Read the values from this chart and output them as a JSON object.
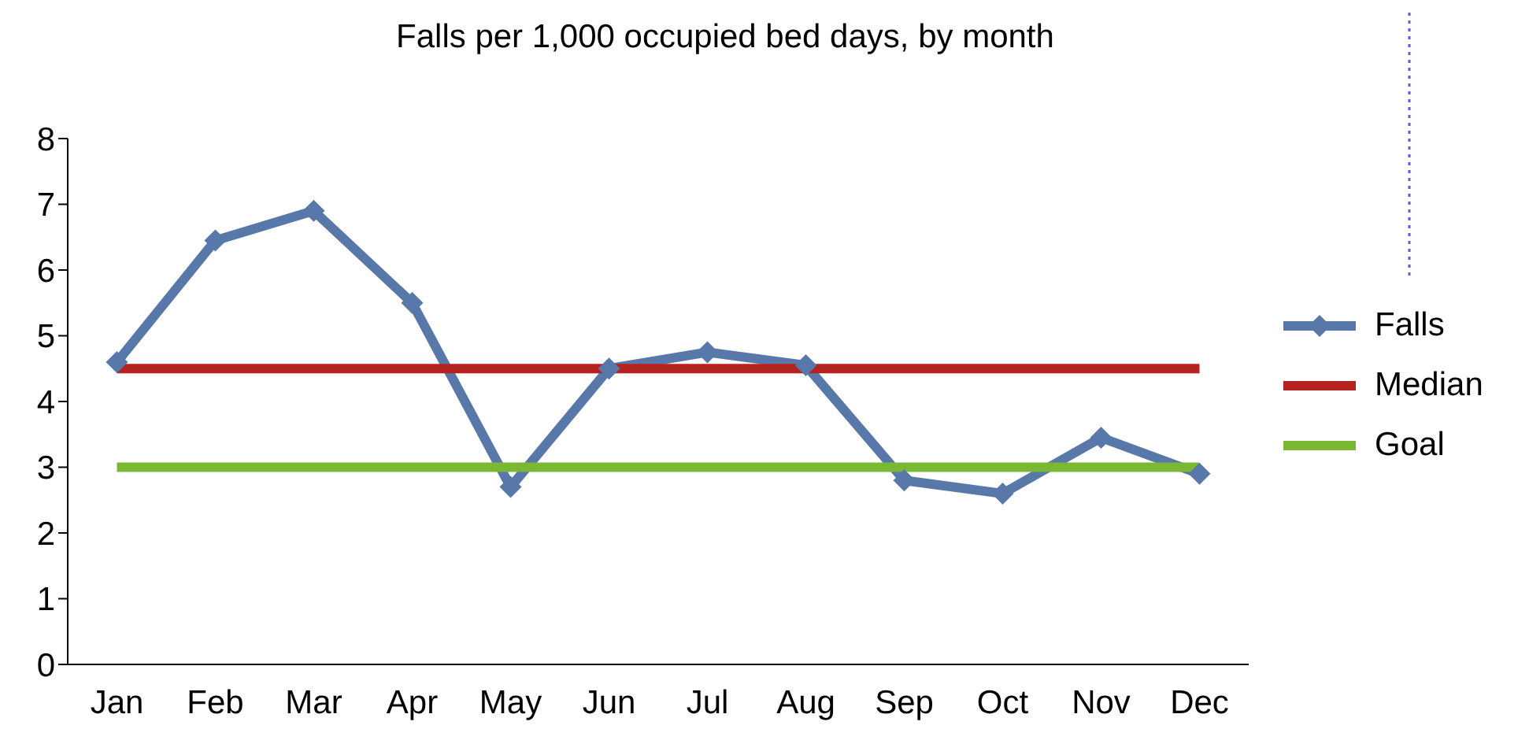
{
  "chart_data": {
    "type": "line",
    "title": "Falls per 1,000 occupied bed days, by month",
    "categories": [
      "Jan",
      "Feb",
      "Mar",
      "Apr",
      "May",
      "Jun",
      "Jul",
      "Aug",
      "Sep",
      "Oct",
      "Nov",
      "Dec"
    ],
    "series": [
      {
        "name": "Falls",
        "color": "#5878aa",
        "marker": "diamond",
        "values": [
          4.6,
          6.45,
          6.9,
          5.5,
          2.7,
          4.5,
          4.75,
          4.55,
          2.8,
          2.6,
          3.45,
          2.9
        ]
      },
      {
        "name": "Median",
        "color": "#b4231f",
        "marker": "none",
        "values": [
          4.5,
          4.5,
          4.5,
          4.5,
          4.5,
          4.5,
          4.5,
          4.5,
          4.5,
          4.5,
          4.5,
          4.5
        ]
      },
      {
        "name": "Goal",
        "color": "#7ab833",
        "marker": "none",
        "values": [
          3,
          3,
          3,
          3,
          3,
          3,
          3,
          3,
          3,
          3,
          3,
          3
        ]
      }
    ],
    "ylim": [
      0,
      8
    ],
    "yticks": [
      0,
      1,
      2,
      3,
      4,
      5,
      6,
      7,
      8
    ],
    "legend": "right",
    "line_style": "solid"
  }
}
